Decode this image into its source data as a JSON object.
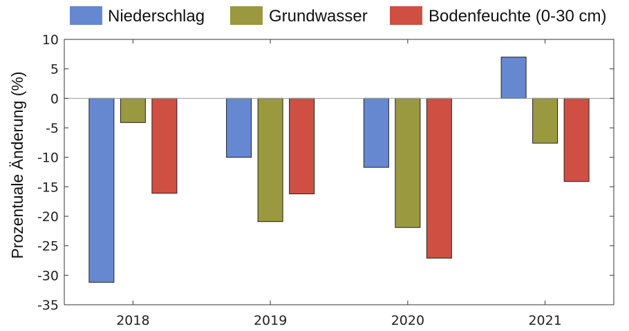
{
  "chart_data": {
    "type": "bar",
    "categories": [
      "2018",
      "2019",
      "2020",
      "2021"
    ],
    "series": [
      {
        "name": "Niederschlag",
        "color": "#6688d0",
        "values": [
          -31.2,
          -10.0,
          -11.7,
          7.0
        ]
      },
      {
        "name": "Grundwasser",
        "color": "#9a993f",
        "values": [
          -4.1,
          -20.9,
          -21.9,
          -7.6
        ]
      },
      {
        "name": "Bodenfeuchte (0-30 cm)",
        "color": "#cf4f43",
        "values": [
          -16.1,
          -16.2,
          -27.1,
          -14.1
        ]
      }
    ],
    "title": "",
    "xlabel": "",
    "ylabel": "Prozentuale Änderung (%)",
    "ylim": [
      -35,
      10
    ],
    "yticks": [
      10,
      5,
      0,
      -5,
      -10,
      -15,
      -20,
      -25,
      -30,
      -35
    ],
    "grid": false,
    "legend_position": "top"
  }
}
